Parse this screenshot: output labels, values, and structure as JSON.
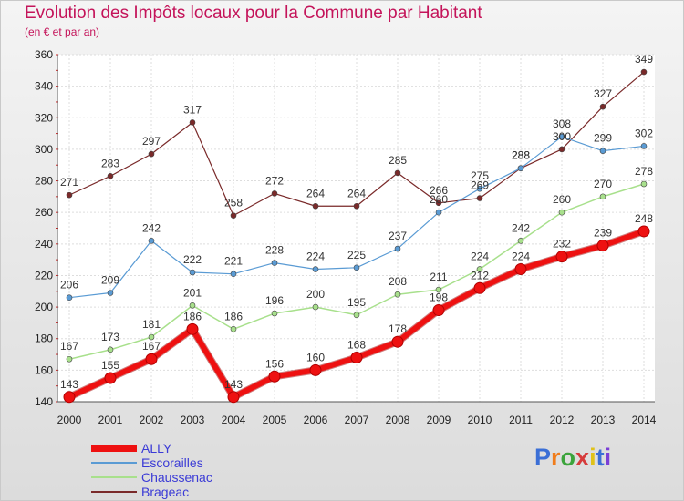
{
  "title": "Evolution des Impôts locaux pour la Commune par Habitant",
  "subtitle": "(en € et par an)",
  "logo": {
    "text": "Proxiti",
    "letter_colors": [
      "#3b6fd6",
      "#f07c1a",
      "#3ca43c",
      "#d63b3b",
      "#e0c21a",
      "#3b6fd6",
      "#7b3fd6"
    ]
  },
  "chart_data": {
    "type": "line",
    "x": [
      "2000",
      "2001",
      "2002",
      "2003",
      "2004",
      "2005",
      "2006",
      "2007",
      "2008",
      "2009",
      "2010",
      "2011",
      "2012",
      "2013",
      "2014"
    ],
    "ylim": [
      140,
      360
    ],
    "yticks": [
      140,
      160,
      180,
      200,
      220,
      240,
      260,
      280,
      300,
      320,
      340,
      360
    ],
    "grid": true,
    "legend_position": "bottom-left",
    "series": [
      {
        "name": "Brageac",
        "color": "#7a2a2a",
        "line_width": 1.2,
        "values": [
          271,
          283,
          297,
          317,
          258,
          272,
          264,
          264,
          285,
          266,
          269,
          288,
          300,
          327,
          349
        ]
      },
      {
        "name": "Escorailles",
        "color": "#5a9bd4",
        "line_width": 1.2,
        "values": [
          206,
          209,
          242,
          222,
          221,
          228,
          224,
          225,
          237,
          260,
          275,
          288,
          308,
          299,
          302
        ]
      },
      {
        "name": "Chaussenac",
        "color": "#a8e08c",
        "line_width": 1.5,
        "values": [
          167,
          173,
          181,
          201,
          186,
          196,
          200,
          195,
          208,
          211,
          224,
          242,
          260,
          270,
          278
        ]
      },
      {
        "name": "ALLY",
        "color": "#ee1111",
        "line_width": 6,
        "values": [
          143,
          155,
          167,
          186,
          143,
          156,
          160,
          168,
          178,
          198,
          212,
          224,
          232,
          239,
          248
        ]
      }
    ],
    "data_labels": [
      {
        "series": "Brageac",
        "labels": [
          "271",
          "283",
          "297",
          "317",
          "258",
          "272",
          "264",
          "264",
          "285",
          "266",
          "269",
          "288",
          "300",
          "327",
          "349"
        ]
      },
      {
        "series": "Escorailles",
        "labels": [
          "206",
          "209",
          "242",
          "222",
          "221",
          "228",
          "224",
          "225",
          "237",
          "260",
          "275",
          "288",
          "308",
          "299",
          "302"
        ]
      },
      {
        "series": "Chaussenac",
        "labels": [
          "167",
          "173",
          "181",
          "201",
          "186",
          "196",
          "200",
          "195",
          "208",
          "211",
          "224",
          "242",
          "260",
          "270",
          "278"
        ]
      },
      {
        "series": "ALLY",
        "labels": [
          "143",
          "155",
          "167",
          "186",
          "143",
          "156",
          "160",
          "168",
          "178",
          "198",
          "212",
          "224",
          "232",
          "239",
          "248"
        ]
      }
    ],
    "legend": [
      {
        "name": "ALLY",
        "color": "#ee1111",
        "text_color": "#3b3bd6"
      },
      {
        "name": "Escorailles",
        "color": "#5a9bd4",
        "text_color": "#3b3bd6"
      },
      {
        "name": "Chaussenac",
        "color": "#a8e08c",
        "text_color": "#3b3bd6"
      },
      {
        "name": "Brageac",
        "color": "#7a2a2a",
        "text_color": "#3b3bd6"
      }
    ]
  }
}
